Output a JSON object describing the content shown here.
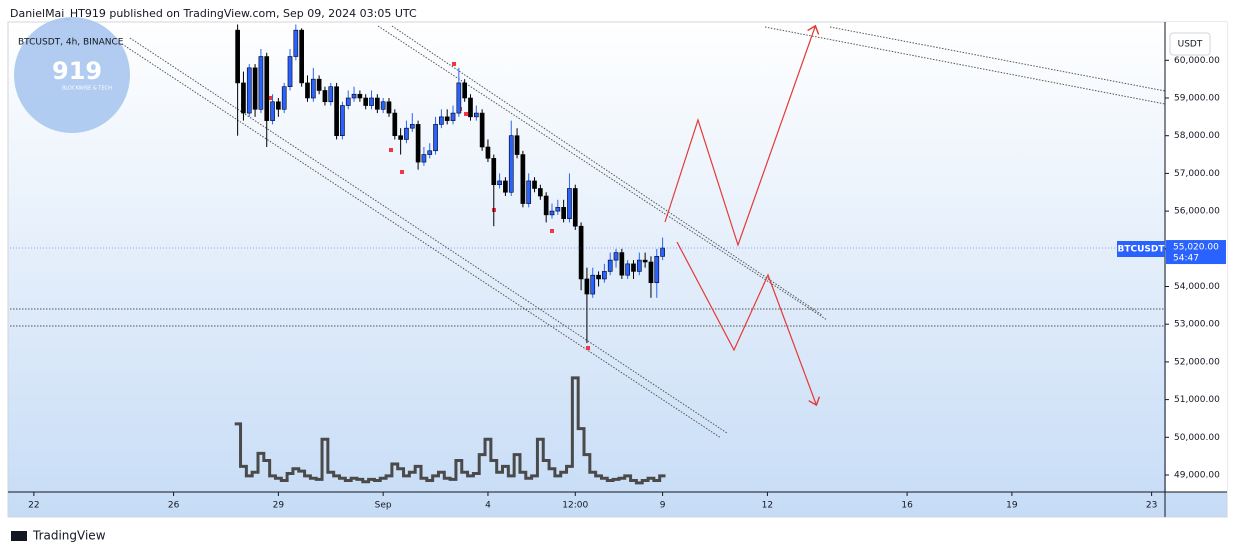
{
  "header": "DanielMai_HT919 published on TradingView.com, Sep 09, 2024 03:05 UTC",
  "footer": "TradingView",
  "logo": {
    "number": "919",
    "tagline": "BLOCKWISE & TECH"
  },
  "chart_data": {
    "type": "candlestick",
    "symbol_line": "BTCUSDT, 4h, BINANCE",
    "currency": "USDT",
    "price_tag": {
      "symbol": "BTCUSDT",
      "price": {
        "value": 55020,
        "label": "55,020.00"
      },
      "countdown": "54:47"
    },
    "up_color": "#2962ff",
    "down_color": "#000000",
    "xlim": [
      -4.1,
      194.3
    ],
    "xticks": [
      {
        "value": 0,
        "label": "22"
      },
      {
        "value": 24,
        "label": "26"
      },
      {
        "value": 42,
        "label": "29"
      },
      {
        "value": 60,
        "label": "Sep"
      },
      {
        "value": 78,
        "label": "4"
      },
      {
        "value": 93,
        "label": "12:00"
      },
      {
        "value": 108,
        "label": "9"
      },
      {
        "value": 126,
        "label": "12"
      },
      {
        "value": 150,
        "label": "16"
      },
      {
        "value": 168,
        "label": "19"
      },
      {
        "value": 192,
        "label": "23"
      }
    ],
    "ylim": [
      48549,
      61016
    ],
    "yticks": [
      {
        "value": 49000,
        "label": "49,000.00"
      },
      {
        "value": 50000,
        "label": "50,000.00"
      },
      {
        "value": 51000,
        "label": "51,000.00"
      },
      {
        "value": 52000,
        "label": "52,000.00"
      },
      {
        "value": 53000,
        "label": "53,000.00"
      },
      {
        "value": 54000,
        "label": "54,000.00"
      },
      {
        "value": 55000,
        "label": "55,000.00"
      },
      {
        "value": 56000,
        "label": "56,000.00"
      },
      {
        "value": 57000,
        "label": "57,000.00"
      },
      {
        "value": 58000,
        "label": "58,000.00"
      },
      {
        "value": 59000,
        "label": "59,000.00"
      },
      {
        "value": 60000,
        "label": "60,000.00"
      }
    ],
    "x": [
      35,
      36,
      37,
      38,
      39,
      40,
      41,
      42,
      43,
      44,
      45,
      46,
      47,
      48,
      49,
      50,
      51,
      52,
      53,
      54,
      55,
      56,
      57,
      58,
      59,
      60,
      61,
      62,
      63,
      64,
      65,
      66,
      67,
      68,
      69,
      70,
      71,
      72,
      73,
      74,
      75,
      76,
      77,
      78,
      79,
      80,
      81,
      82,
      83,
      84,
      85,
      86,
      87,
      88,
      89,
      90,
      91,
      92,
      93,
      94,
      95,
      96,
      97,
      98,
      99,
      100,
      101,
      102,
      103,
      104,
      105,
      106,
      107,
      108
    ],
    "open": [
      60800,
      59400,
      58600,
      59800,
      58700,
      60100,
      58400,
      58900,
      58700,
      59300,
      60100,
      60800,
      59400,
      59000,
      59500,
      59200,
      58900,
      59300,
      58000,
      58800,
      59000,
      59100,
      59000,
      58800,
      59000,
      58700,
      58900,
      58600,
      58000,
      57900,
      58200,
      58300,
      57300,
      57500,
      57600,
      58300,
      58500,
      58400,
      58600,
      59400,
      59000,
      58500,
      58600,
      57700,
      57400,
      56700,
      56800,
      56500,
      58000,
      57500,
      56200,
      56800,
      56600,
      56400,
      55900,
      56000,
      56100,
      55800,
      56600,
      55600,
      54200,
      53800,
      54300,
      54200,
      54400,
      54700,
      54900,
      54300,
      54600,
      54400,
      54700,
      54650,
      54100,
      54800
    ],
    "high": [
      60950,
      59700,
      59900,
      59900,
      60300,
      60200,
      59100,
      59000,
      59400,
      60300,
      60950,
      60850,
      59600,
      59800,
      59600,
      59300,
      59400,
      59400,
      58900,
      59200,
      59300,
      59200,
      59100,
      59200,
      59100,
      59000,
      59000,
      58700,
      58200,
      58400,
      58600,
      58400,
      57700,
      57800,
      58500,
      58700,
      58700,
      58800,
      59800,
      59500,
      59100,
      58800,
      58700,
      57900,
      57500,
      57000,
      56900,
      58400,
      58200,
      57600,
      57000,
      56900,
      56700,
      56500,
      56200,
      56300,
      56300,
      57000,
      56700,
      55700,
      54500,
      54500,
      54400,
      54600,
      54900,
      55000,
      55000,
      54700,
      54700,
      54900,
      54900,
      54800,
      55000,
      55300
    ],
    "low": [
      58000,
      58400,
      58500,
      58500,
      58600,
      57700,
      58300,
      58500,
      58600,
      59200,
      60000,
      59300,
      58900,
      58900,
      59100,
      58800,
      58800,
      57900,
      57900,
      58700,
      58900,
      58900,
      58700,
      58700,
      58600,
      58600,
      58500,
      57900,
      57500,
      57800,
      58100,
      57100,
      57200,
      57400,
      57500,
      58200,
      58300,
      58300,
      58500,
      58900,
      58400,
      58400,
      57600,
      57300,
      55600,
      56600,
      56400,
      56400,
      57400,
      56100,
      56100,
      56500,
      56300,
      55700,
      55800,
      55900,
      55700,
      55700,
      55500,
      53900,
      52500,
      53700,
      54000,
      54100,
      54300,
      54500,
      54200,
      54200,
      54200,
      54300,
      54500,
      53700,
      53700,
      54700
    ],
    "close": [
      59400,
      58600,
      59800,
      58700,
      60100,
      58400,
      58900,
      58700,
      59300,
      60100,
      60800,
      59400,
      59000,
      59500,
      59200,
      58900,
      59300,
      58000,
      58800,
      59000,
      59100,
      59000,
      58800,
      59000,
      58700,
      58900,
      58600,
      58000,
      57900,
      58200,
      58300,
      57300,
      57500,
      57600,
      58300,
      58500,
      58400,
      58600,
      59400,
      59000,
      58500,
      58600,
      57700,
      57400,
      56700,
      56800,
      56500,
      58000,
      57500,
      56200,
      56800,
      56600,
      56400,
      55900,
      56000,
      56100,
      55800,
      56600,
      55600,
      54200,
      53800,
      54300,
      54200,
      54400,
      54700,
      54900,
      54300,
      54600,
      54400,
      54700,
      54650,
      54100,
      54800,
      55020
    ],
    "volume": {
      "color": "#4a4a4a",
      "ylim": [
        0,
        100
      ],
      "values": [
        56,
        20,
        12,
        15,
        31,
        25,
        12,
        10,
        8,
        14,
        18,
        16,
        12,
        10,
        9,
        43,
        15,
        12,
        10,
        8,
        10,
        9,
        7,
        9,
        8,
        10,
        12,
        22,
        18,
        12,
        15,
        20,
        10,
        8,
        12,
        15,
        10,
        9,
        25,
        15,
        12,
        14,
        30,
        43,
        25,
        15,
        20,
        12,
        30,
        15,
        10,
        12,
        43,
        25,
        18,
        12,
        15,
        20,
        95,
        52,
        30,
        15,
        12,
        10,
        8,
        9,
        10,
        12,
        8,
        6,
        8,
        10,
        8,
        12
      ]
    }
  }
}
